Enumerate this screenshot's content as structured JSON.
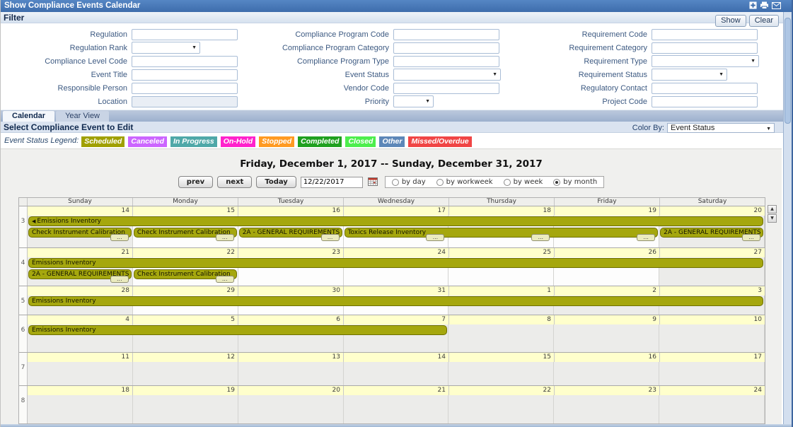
{
  "colors": {
    "titlebar": "#4677b5",
    "event_bar": "#a5a70e",
    "event_bar_border": "#6e7000",
    "date_strip": "#ffffcc"
  },
  "window": {
    "title": "Show Compliance Events Calendar",
    "icons": [
      "add-icon",
      "print-icon",
      "email-icon"
    ]
  },
  "filter": {
    "title": "Filter",
    "show_button": "Show",
    "clear_button": "Clear",
    "columns": [
      {
        "fields": [
          {
            "label": "Regulation",
            "control": "text"
          },
          {
            "label": "Regulation Rank",
            "control": "select",
            "size": "md"
          },
          {
            "label": "Compliance Level Code",
            "control": "text"
          },
          {
            "label": "Event Title",
            "control": "text"
          },
          {
            "label": "Responsible Person",
            "control": "text"
          },
          {
            "label": "Location",
            "control": "text-disabled"
          }
        ]
      },
      {
        "fields": [
          {
            "label": "Compliance Program Code",
            "control": "text"
          },
          {
            "label": "Compliance Program Category",
            "control": "text"
          },
          {
            "label": "Compliance Program Type",
            "control": "text"
          },
          {
            "label": "Event Status",
            "control": "select",
            "size": "lg"
          },
          {
            "label": "Vendor Code",
            "control": "text"
          },
          {
            "label": "Priority",
            "control": "select",
            "size": "sm"
          }
        ]
      },
      {
        "fields": [
          {
            "label": "Requirement Code",
            "control": "text"
          },
          {
            "label": "Requirement Category",
            "control": "text"
          },
          {
            "label": "Requirement Type",
            "control": "select",
            "size": "lg"
          },
          {
            "label": "Requirement Status",
            "control": "select",
            "size": "md2"
          },
          {
            "label": "Regulatory Contact",
            "control": "text"
          },
          {
            "label": "Project Code",
            "control": "text"
          }
        ]
      }
    ]
  },
  "tabs": [
    {
      "label": "Calendar",
      "active": true
    },
    {
      "label": "Year View",
      "active": false
    }
  ],
  "section": {
    "title": "Select Compliance Event to Edit",
    "color_by_label": "Color By:",
    "color_by_value": "Event Status"
  },
  "legend": {
    "label": "Event Status Legend:",
    "items": [
      {
        "label": "Scheduled",
        "color": "#a0a000"
      },
      {
        "label": "Canceled",
        "color": "#cc66ff"
      },
      {
        "label": "In Progress",
        "color": "#4fa8a8"
      },
      {
        "label": "On-Hold",
        "color": "#ff22cc"
      },
      {
        "label": "Stopped",
        "color": "#ff9a22"
      },
      {
        "label": "Completed",
        "color": "#1fa01f"
      },
      {
        "label": "Closed",
        "color": "#4dee4d"
      },
      {
        "label": "Other",
        "color": "#5d87b8"
      },
      {
        "label": "Missed/Overdue",
        "color": "#f04545"
      }
    ]
  },
  "calendar": {
    "title": "Friday, December 1, 2017 -- Sunday, December 31, 2017",
    "nav": {
      "prev": "prev",
      "next": "next",
      "today": "Today",
      "date_value": "12/22/2017",
      "view_options": [
        "by day",
        "by workweek",
        "by week",
        "by month"
      ],
      "selected_view": 3
    },
    "day_names": [
      "Sunday",
      "Monday",
      "Tuesday",
      "Wednesday",
      "Thursday",
      "Friday",
      "Saturday"
    ],
    "weeks": [
      {
        "num": 3,
        "dates": [
          14,
          15,
          16,
          17,
          18,
          19,
          20
        ],
        "shaded": [
          0,
          6
        ],
        "h": 59,
        "bars": [
          {
            "label": "Emissions Inventory",
            "row": 1,
            "start": 0,
            "span": 7,
            "cont_left": true
          },
          {
            "label": "Check Instrument Calibration",
            "row": 2,
            "start": 0,
            "span": 1,
            "dots": [
              0
            ]
          },
          {
            "label": "Check Instrument Calibration",
            "row": 2,
            "start": 1,
            "span": 1,
            "dots": [
              1
            ]
          },
          {
            "label": "2A - GENERAL REQUIREMENTS",
            "row": 2,
            "start": 2,
            "span": 1,
            "dots": [
              2
            ]
          },
          {
            "label": "Toxics Release Inventory",
            "row": 2,
            "start": 3,
            "span": 3,
            "dots": [
              3,
              4,
              5
            ]
          },
          {
            "label": "2A - GENERAL REQUIREMENTS",
            "row": 2,
            "start": 6,
            "span": 1,
            "dots": [
              6
            ]
          }
        ]
      },
      {
        "num": 4,
        "dates": [
          21,
          22,
          23,
          24,
          25,
          26,
          27
        ],
        "shaded": [
          0,
          6
        ],
        "h": 54,
        "bars": [
          {
            "label": "Emissions Inventory",
            "row": 1,
            "start": 0,
            "span": 7
          },
          {
            "label": "2A - GENERAL REQUIREMENTS",
            "row": 2,
            "start": 0,
            "span": 1,
            "dots": [
              0
            ]
          },
          {
            "label": "Check Instrument Calibration",
            "row": 2,
            "start": 1,
            "span": 1,
            "dots": [
              1
            ]
          }
        ]
      },
      {
        "num": 5,
        "dates": [
          28,
          29,
          30,
          31,
          1,
          2,
          3
        ],
        "shaded": [
          0,
          4,
          5,
          6
        ],
        "h": 41,
        "bars": [
          {
            "label": "Emissions Inventory",
            "row": 1,
            "start": 0,
            "span": 7
          }
        ]
      },
      {
        "num": 6,
        "dates": [
          4,
          5,
          6,
          7,
          8,
          9,
          10
        ],
        "shaded": [
          0,
          1,
          2,
          3,
          4,
          5,
          6
        ],
        "h": 53,
        "bars": [
          {
            "label": "Emissions Inventory",
            "row": 1,
            "start": 0,
            "span": 4
          }
        ]
      },
      {
        "num": 7,
        "dates": [
          11,
          12,
          13,
          14,
          15,
          16,
          17
        ],
        "shaded": [
          0,
          1,
          2,
          3,
          4,
          5,
          6
        ],
        "h": 47,
        "bars": []
      },
      {
        "num": 8,
        "dates": [
          18,
          19,
          20,
          21,
          22,
          23,
          24
        ],
        "shaded": [
          0,
          1,
          2,
          3,
          4,
          5,
          6
        ],
        "h": 54,
        "bars": []
      }
    ]
  }
}
